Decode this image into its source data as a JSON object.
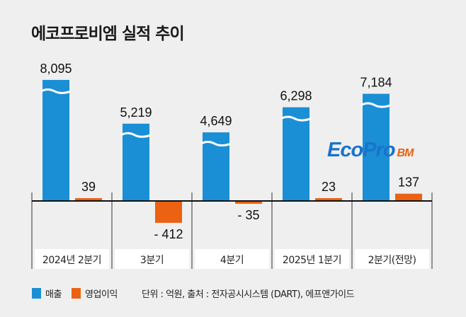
{
  "chart_data": {
    "type": "bar",
    "title": "에코프로비엠 실적 추이",
    "categories": [
      "2024년 2분기",
      "3분기",
      "4분기",
      "2025년 1분기",
      "2분기(전망)"
    ],
    "series": [
      {
        "name": "매출",
        "values": [
          8095,
          5219,
          4649,
          6298,
          7184
        ],
        "labels": [
          "8,095",
          "5,219",
          "4,649",
          "6,298",
          "7,184"
        ],
        "color": "#1a8fd6",
        "axis_break": true
      },
      {
        "name": "영업이익",
        "values": [
          39,
          -412,
          -35,
          23,
          137
        ],
        "labels": [
          "39",
          "- 412",
          "- 35",
          "23",
          "137"
        ],
        "color": "#ea6212"
      }
    ],
    "note": "단위 : 억원, 출처 : 전자공시시스템 (DART), 에프앤가이드",
    "legend": "bottom-left",
    "grid": false
  },
  "logo": {
    "text_main": "EcoPro",
    "text_sub": "BM",
    "color_main": "#1a73c9",
    "color_sub": "#ea6212"
  }
}
